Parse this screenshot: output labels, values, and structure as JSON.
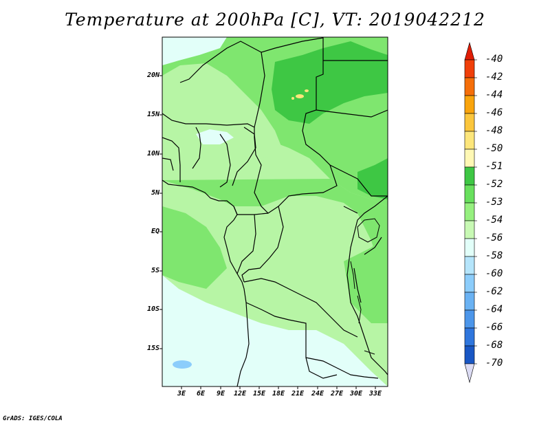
{
  "title": "Temperature at 200hPa [C], VT: 2019042212",
  "footer": "GrADS: IGES/COLA",
  "map": {
    "lat_labels": [
      "20N",
      "15N",
      "10N",
      "5N",
      "EQ",
      "5S",
      "10S",
      "15S"
    ],
    "lon_labels": [
      "3E",
      "6E",
      "9E",
      "12E",
      "15E",
      "18E",
      "21E",
      "24E",
      "27E",
      "30E",
      "33E"
    ]
  },
  "colorbar": {
    "labels": [
      "-40",
      "-42",
      "-44",
      "-46",
      "-48",
      "-50",
      "-51",
      "-52",
      "-53",
      "-54",
      "-56",
      "-58",
      "-60",
      "-62",
      "-64",
      "-66",
      "-68",
      "-70"
    ],
    "colors": [
      "#e01d05",
      "#f03f09",
      "#f56e09",
      "#f9a40c",
      "#fbc63c",
      "#fde67b",
      "#fff8b4",
      "#3ec744",
      "#68e05d",
      "#96f07f",
      "#c8f9b4",
      "#e2fff9",
      "#b5e5fb",
      "#8ccdfb",
      "#6ab2f3",
      "#4c96ea",
      "#2f76dd",
      "#1957c4",
      "#0d3aa2",
      "#0a2177",
      "#0c0c58",
      "#dcdcf4"
    ]
  },
  "palette": {
    "c53": "#7fe66f",
    "c52": "#3ec744",
    "c54": "#b7f5a5",
    "c56": "#e2fff9",
    "c58": "#b5e5fb",
    "c50": "#fde67b"
  }
}
